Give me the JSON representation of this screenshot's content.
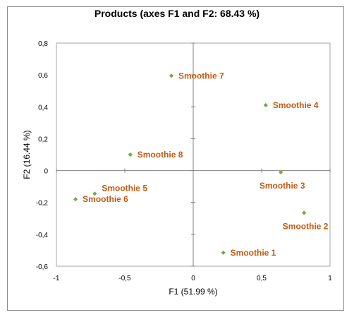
{
  "chart_data": {
    "type": "scatter",
    "title": "Products (axes F1 and F2: 68.43 %)",
    "xlabel": "F1 (51.99 %)",
    "ylabel": "F2 (16.44 %)",
    "xlim": [
      -1,
      1
    ],
    "ylim": [
      -0.6,
      0.8
    ],
    "x_ticks": [
      -1,
      -0.5,
      0,
      0.5,
      1
    ],
    "y_ticks": [
      -0.6,
      -0.4,
      -0.2,
      0,
      0.2,
      0.4,
      0.6,
      0.8
    ],
    "x_tick_labels": [
      "-1",
      "-0,5",
      "0",
      "0,5",
      "1"
    ],
    "y_tick_labels": [
      "-0,6",
      "-0,4",
      "-0,2",
      "0",
      "0,2",
      "0,4",
      "0,6",
      "0,8"
    ],
    "grid": false,
    "marker_color": "#70ad47",
    "label_color": "#c55a11",
    "points": [
      {
        "label": "Smoothie 1",
        "x": 0.22,
        "y": -0.515,
        "label_pos": "right"
      },
      {
        "label": "Smoothie 2",
        "x": 0.81,
        "y": -0.265,
        "label_pos": "below"
      },
      {
        "label": "Smoothie 3",
        "x": 0.64,
        "y": -0.01,
        "label_pos": "below"
      },
      {
        "label": "Smoothie 4",
        "x": 0.53,
        "y": 0.41,
        "label_pos": "right"
      },
      {
        "label": "Smoothie 5",
        "x": -0.72,
        "y": -0.145,
        "label_pos": "above"
      },
      {
        "label": "Smoothie 6",
        "x": -0.86,
        "y": -0.18,
        "label_pos": "right"
      },
      {
        "label": "Smoothie 7",
        "x": -0.16,
        "y": 0.595,
        "label_pos": "right"
      },
      {
        "label": "Smoothie 8",
        "x": -0.46,
        "y": 0.1,
        "label_pos": "right"
      }
    ]
  }
}
